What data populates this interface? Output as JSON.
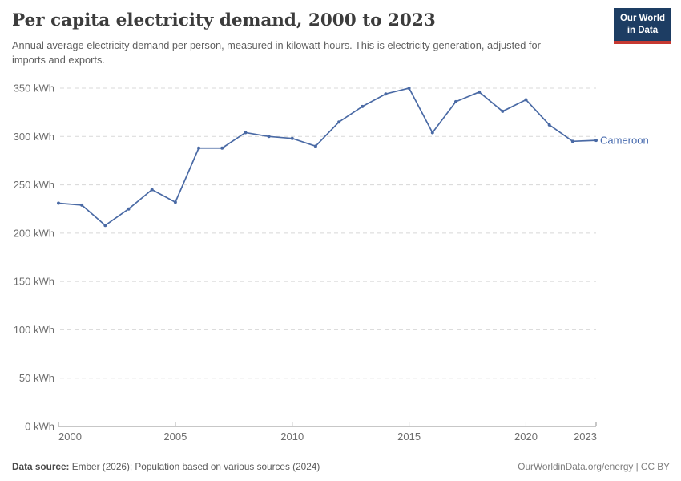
{
  "header": {
    "title": "Per capita electricity demand, 2000 to 2023",
    "subtitle": "Annual average electricity demand per person, measured in kilowatt-hours. This is electricity generation, adjusted for imports and exports.",
    "logo": {
      "line1": "Our World",
      "line2": "in Data"
    }
  },
  "chart_data": {
    "type": "line",
    "title": "Per capita electricity demand, 2000 to 2023",
    "unit": "kWh",
    "x": [
      2000,
      2001,
      2002,
      2003,
      2004,
      2005,
      2006,
      2007,
      2008,
      2009,
      2010,
      2011,
      2012,
      2013,
      2014,
      2015,
      2016,
      2017,
      2018,
      2019,
      2020,
      2021,
      2022,
      2023
    ],
    "series": [
      {
        "name": "Cameroon",
        "values": [
          231,
          229,
          208,
          225,
          245,
          232,
          288,
          288,
          304,
          300,
          298,
          290,
          315,
          331,
          344,
          350,
          304,
          336,
          346,
          326,
          338,
          312,
          295,
          296
        ]
      }
    ],
    "xlim": [
      2000,
      2023
    ],
    "ylim": [
      0,
      350
    ],
    "y_ticks": [
      {
        "value": 0,
        "label": "0 kWh"
      },
      {
        "value": 50,
        "label": "50 kWh"
      },
      {
        "value": 100,
        "label": "100 kWh"
      },
      {
        "value": 150,
        "label": "150 kWh"
      },
      {
        "value": 200,
        "label": "200 kWh"
      },
      {
        "value": 250,
        "label": "250 kWh"
      },
      {
        "value": 300,
        "label": "300 kWh"
      },
      {
        "value": 350,
        "label": "350 kWh"
      }
    ],
    "x_ticks": [
      {
        "value": 2000,
        "label": "2000"
      },
      {
        "value": 2005,
        "label": "2005"
      },
      {
        "value": 2010,
        "label": "2010"
      },
      {
        "value": 2015,
        "label": "2015"
      },
      {
        "value": 2020,
        "label": "2020"
      },
      {
        "value": 2023,
        "label": "2023"
      }
    ],
    "grid": "horizontal-dashed",
    "legend_position": "end-of-line"
  },
  "footer": {
    "source_label": "Data source:",
    "source_text": " Ember (2026); Population based on various sources (2024)",
    "credit": "OurWorldinData.org/energy | CC BY"
  },
  "colors": {
    "line": "#4a6aa5",
    "series_label": "#4468ad",
    "grid": "#d8d8d8",
    "axis": "#8f8f8f",
    "tick_text": "#6e6e6e",
    "logo_bg": "#1d3d63",
    "logo_stripe": "#c63932"
  }
}
